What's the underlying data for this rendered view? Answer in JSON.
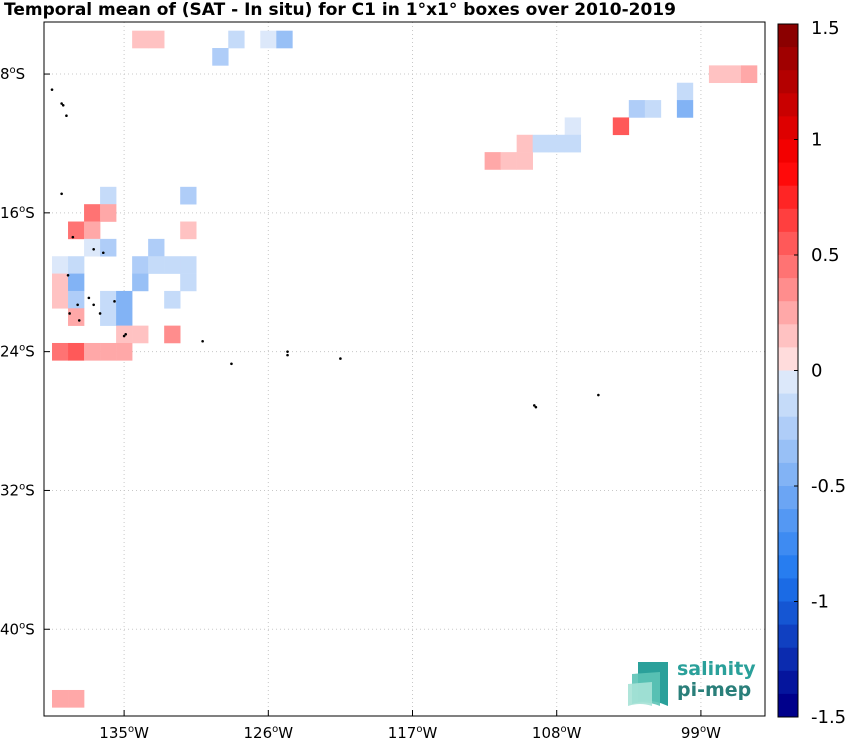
{
  "title": "Temporal mean of (SAT - In situ) for C1 in 1°x1° boxes over 2010-2019",
  "lon_ticks": [
    {
      "value": -135,
      "label": "135"
    },
    {
      "value": -126,
      "label": "126"
    },
    {
      "value": -117,
      "label": "117"
    },
    {
      "value": -108,
      "label": "108"
    },
    {
      "value": -99,
      "label": "99"
    }
  ],
  "lat_ticks": [
    {
      "value": -8,
      "label": "8"
    },
    {
      "value": -16,
      "label": "16"
    },
    {
      "value": -24,
      "label": "24"
    },
    {
      "value": -32,
      "label": "32"
    },
    {
      "value": -40,
      "label": "40"
    }
  ],
  "map_extent": {
    "lon_min": -140,
    "lon_max": -95,
    "lat_min": -45,
    "lat_max": -5
  },
  "colorbar": {
    "min": -1.5,
    "max": 1.5,
    "tick_values": [
      -1.5,
      -1,
      -0.5,
      0,
      0.5,
      1,
      1.5
    ],
    "tick_labels": [
      "-1.5",
      "-1",
      "-0.5",
      "0",
      "0.5",
      "1",
      "1.5"
    ]
  },
  "colors": {
    "neg_strong": "#00008b",
    "neg_mid": "#1e6fe0",
    "pos_strong": "#8b0000",
    "pos_mid": "#ff1a1a",
    "zero": "#ffffff"
  },
  "logo": {
    "line1": "salinity",
    "line2": "pi-mep"
  },
  "boxes": [
    {
      "lon": -134,
      "lat": -6,
      "v": 0.15
    },
    {
      "lon": -133,
      "lat": -6,
      "v": 0.15
    },
    {
      "lon": -128,
      "lat": -6,
      "v": -0.15
    },
    {
      "lon": -126,
      "lat": -6,
      "v": -0.08
    },
    {
      "lon": -125,
      "lat": -6,
      "v": -0.35
    },
    {
      "lon": -129,
      "lat": -7,
      "v": -0.2
    },
    {
      "lon": -98,
      "lat": -8,
      "v": 0.15
    },
    {
      "lon": -97,
      "lat": -8,
      "v": 0.15
    },
    {
      "lon": -96,
      "lat": -8,
      "v": 0.25
    },
    {
      "lon": -100,
      "lat": -9,
      "v": -0.1
    },
    {
      "lon": -103,
      "lat": -10,
      "v": -0.3
    },
    {
      "lon": -102,
      "lat": -10,
      "v": -0.1
    },
    {
      "lon": -100,
      "lat": -10,
      "v": -0.4
    },
    {
      "lon": -104,
      "lat": -11,
      "v": 0.6
    },
    {
      "lon": -107,
      "lat": -11,
      "v": -0.08
    },
    {
      "lon": -110,
      "lat": -12,
      "v": 0.15
    },
    {
      "lon": -109,
      "lat": -12,
      "v": -0.1
    },
    {
      "lon": -108,
      "lat": -12,
      "v": -0.1
    },
    {
      "lon": -107,
      "lat": -12,
      "v": -0.1
    },
    {
      "lon": -112,
      "lat": -13,
      "v": 0.3
    },
    {
      "lon": -111,
      "lat": -13,
      "v": 0.15
    },
    {
      "lon": -110,
      "lat": -13,
      "v": 0.15
    },
    {
      "lon": -136,
      "lat": -15,
      "v": -0.1
    },
    {
      "lon": -131,
      "lat": -15,
      "v": -0.25
    },
    {
      "lon": -137,
      "lat": -16,
      "v": 0.4
    },
    {
      "lon": -136,
      "lat": -16,
      "v": 0.3
    },
    {
      "lon": -138,
      "lat": -17,
      "v": 0.4
    },
    {
      "lon": -137,
      "lat": -17,
      "v": 0.2
    },
    {
      "lon": -131,
      "lat": -17,
      "v": 0.15
    },
    {
      "lon": -137,
      "lat": -18,
      "v": -0.08
    },
    {
      "lon": -136,
      "lat": -18,
      "v": -0.3
    },
    {
      "lon": -133,
      "lat": -18,
      "v": -0.25
    },
    {
      "lon": -139,
      "lat": -19,
      "v": -0.08
    },
    {
      "lon": -138,
      "lat": -19,
      "v": -0.1
    },
    {
      "lon": -134,
      "lat": -19,
      "v": -0.3
    },
    {
      "lon": -133,
      "lat": -19,
      "v": -0.1
    },
    {
      "lon": -132,
      "lat": -19,
      "v": -0.1
    },
    {
      "lon": -131,
      "lat": -19,
      "v": -0.1
    },
    {
      "lon": -139,
      "lat": -20,
      "v": 0.15
    },
    {
      "lon": -138,
      "lat": -20,
      "v": -0.45
    },
    {
      "lon": -134,
      "lat": -20,
      "v": -0.35
    },
    {
      "lon": -131,
      "lat": -20,
      "v": -0.1
    },
    {
      "lon": -139,
      "lat": -21,
      "v": 0.15
    },
    {
      "lon": -138,
      "lat": -21,
      "v": -0.3
    },
    {
      "lon": -136,
      "lat": -21,
      "v": -0.1
    },
    {
      "lon": -135,
      "lat": -21,
      "v": -0.4
    },
    {
      "lon": -132,
      "lat": -21,
      "v": -0.1
    },
    {
      "lon": -138,
      "lat": -22,
      "v": 0.2
    },
    {
      "lon": -136,
      "lat": -22,
      "v": -0.1
    },
    {
      "lon": -135,
      "lat": -22,
      "v": -0.4
    },
    {
      "lon": -135,
      "lat": -23,
      "v": 0.15
    },
    {
      "lon": -134,
      "lat": -23,
      "v": 0.15
    },
    {
      "lon": -132,
      "lat": -23,
      "v": 0.35
    },
    {
      "lon": -139,
      "lat": -24,
      "v": 0.4
    },
    {
      "lon": -138,
      "lat": -24,
      "v": 0.6
    },
    {
      "lon": -137,
      "lat": -24,
      "v": 0.25
    },
    {
      "lon": -136,
      "lat": -24,
      "v": 0.3
    },
    {
      "lon": -135,
      "lat": -24,
      "v": 0.2
    },
    {
      "lon": -139,
      "lat": -44,
      "v": 0.2
    },
    {
      "lon": -138,
      "lat": -44,
      "v": 0.2
    }
  ],
  "islands": [
    {
      "lon": -139.5,
      "lat": -8.9
    },
    {
      "lon": -138.9,
      "lat": -9.7
    },
    {
      "lon": -138.8,
      "lat": -9.8
    },
    {
      "lon": -138.6,
      "lat": -10.4
    },
    {
      "lon": -138.9,
      "lat": -14.9
    },
    {
      "lon": -138.2,
      "lat": -17.4
    },
    {
      "lon": -136.9,
      "lat": -18.1
    },
    {
      "lon": -136.3,
      "lat": -18.3
    },
    {
      "lon": -138.5,
      "lat": -19.6
    },
    {
      "lon": -137.2,
      "lat": -20.9
    },
    {
      "lon": -136.9,
      "lat": -21.3
    },
    {
      "lon": -135.6,
      "lat": -21.1
    },
    {
      "lon": -136.5,
      "lat": -21.8
    },
    {
      "lon": -138.4,
      "lat": -21.8
    },
    {
      "lon": -137.9,
      "lat": -21.3
    },
    {
      "lon": -137.8,
      "lat": -22.2
    },
    {
      "lon": -134.9,
      "lat": -23.0
    },
    {
      "lon": -135.0,
      "lat": -23.1
    },
    {
      "lon": -130.1,
      "lat": -23.4
    },
    {
      "lon": -128.3,
      "lat": -24.7
    },
    {
      "lon": -124.8,
      "lat": -24.0
    },
    {
      "lon": -124.8,
      "lat": -24.2
    },
    {
      "lon": -109.4,
      "lat": -27.1
    },
    {
      "lon": -109.3,
      "lat": -27.2
    },
    {
      "lon": -105.4,
      "lat": -26.5
    },
    {
      "lon": -121.5,
      "lat": -24.4
    }
  ]
}
